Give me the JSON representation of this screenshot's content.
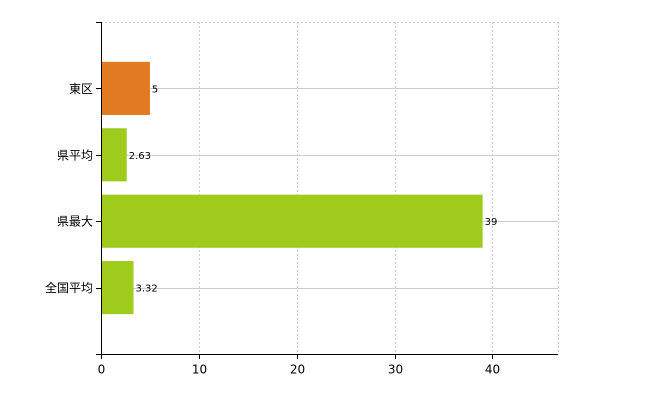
{
  "chart_data": {
    "type": "barh",
    "categories": [
      "東区",
      "県平均",
      "県最大",
      "全国平均"
    ],
    "values": [
      5,
      2.63,
      39,
      3.32
    ],
    "colors": [
      "#e27a22",
      "#9ecb1c",
      "#9ecb1c",
      "#9ecb1c"
    ],
    "xlim": [
      0,
      46.7
    ],
    "xticks": [
      0,
      10,
      20,
      30,
      40
    ],
    "grid": true
  }
}
